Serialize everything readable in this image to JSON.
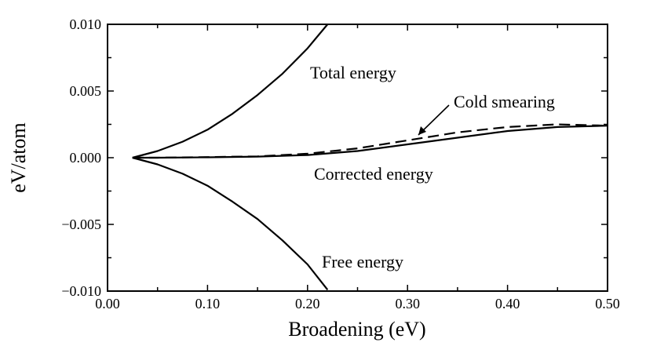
{
  "chart_data": {
    "type": "line",
    "xlabel": "Broadening (eV)",
    "ylabel": "eV/atom",
    "xlim": [
      0.0,
      0.5
    ],
    "ylim": [
      -0.01,
      0.01
    ],
    "x_ticks": [
      "0.00",
      "0.10",
      "0.20",
      "0.30",
      "0.40",
      "0.50"
    ],
    "y_ticks": [
      "0.010",
      "0.005",
      "0.000",
      "−0.005",
      "−0.010"
    ],
    "grid": false,
    "annotations": [
      {
        "text": "Total energy",
        "series": "total"
      },
      {
        "text": "Cold smearing",
        "series": "cold"
      },
      {
        "text": "Corrected energy",
        "series": "corrected"
      },
      {
        "text": "Free energy",
        "series": "free"
      }
    ],
    "series": [
      {
        "key": "total",
        "style": "solid",
        "x": [
          0.025,
          0.05,
          0.075,
          0.1,
          0.125,
          0.15,
          0.175,
          0.2,
          0.22
        ],
        "y": [
          0.0,
          0.0005,
          0.0012,
          0.0021,
          0.0033,
          0.0047,
          0.0063,
          0.0082,
          0.0101
        ]
      },
      {
        "key": "free",
        "style": "solid",
        "x": [
          0.025,
          0.05,
          0.075,
          0.1,
          0.125,
          0.15,
          0.175,
          0.2,
          0.22
        ],
        "y": [
          0.0,
          -0.0005,
          -0.0012,
          -0.0021,
          -0.0033,
          -0.0046,
          -0.0062,
          -0.008,
          -0.0099
        ]
      },
      {
        "key": "corrected",
        "style": "solid",
        "x": [
          0.025,
          0.05,
          0.1,
          0.15,
          0.2,
          0.25,
          0.3,
          0.35,
          0.4,
          0.45,
          0.5
        ],
        "y": [
          0.0,
          0.0,
          3e-05,
          8e-05,
          0.0002,
          0.0005,
          0.001,
          0.0015,
          0.002,
          0.0023,
          0.0024
        ]
      },
      {
        "key": "cold",
        "style": "dashed",
        "x": [
          0.025,
          0.05,
          0.1,
          0.15,
          0.2,
          0.25,
          0.3,
          0.35,
          0.4,
          0.45,
          0.5
        ],
        "y": [
          0.0,
          0.0,
          5e-05,
          0.0001,
          0.0003,
          0.0007,
          0.0013,
          0.0019,
          0.0023,
          0.0025,
          0.0024
        ]
      }
    ]
  }
}
